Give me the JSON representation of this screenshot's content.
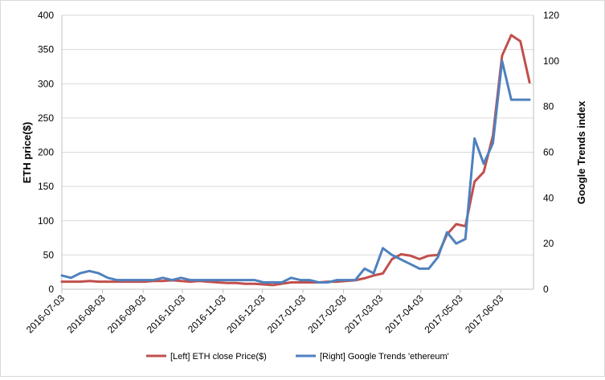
{
  "chart_data": {
    "type": "line",
    "title": "",
    "y_left": {
      "label": "ETH price($)",
      "range": [
        0,
        400
      ],
      "ticks": [
        0,
        50,
        100,
        150,
        200,
        250,
        300,
        350,
        400
      ]
    },
    "y_right": {
      "label": "Google Trends index",
      "range": [
        0,
        120
      ],
      "ticks": [
        0,
        20,
        40,
        60,
        80,
        100,
        120
      ]
    },
    "x_tick_labels": [
      "2016-07-03",
      "2016-08-03",
      "2016-09-03",
      "2016-10-03",
      "2016-11-03",
      "2016-12-03",
      "2017-01-03",
      "2017-02-03",
      "2017-03-03",
      "2017-04-03",
      "2017-05-03",
      "2017-06-03"
    ],
    "grid": "horizontal",
    "legend_position": "bottom",
    "series": [
      {
        "name": "[Left] ETH close Price($)",
        "axis": "left",
        "color": "#c0504d",
        "x": [
          "2016-07-03",
          "2016-07-10",
          "2016-07-17",
          "2016-07-24",
          "2016-07-31",
          "2016-08-07",
          "2016-08-14",
          "2016-08-21",
          "2016-08-28",
          "2016-09-04",
          "2016-09-11",
          "2016-09-18",
          "2016-09-25",
          "2016-10-02",
          "2016-10-09",
          "2016-10-16",
          "2016-10-23",
          "2016-10-30",
          "2016-11-06",
          "2016-11-13",
          "2016-11-20",
          "2016-11-27",
          "2016-12-04",
          "2016-12-11",
          "2016-12-18",
          "2016-12-25",
          "2017-01-01",
          "2017-01-08",
          "2017-01-15",
          "2017-01-22",
          "2017-01-29",
          "2017-02-05",
          "2017-02-12",
          "2017-02-19",
          "2017-02-26",
          "2017-03-05",
          "2017-03-12",
          "2017-03-19",
          "2017-03-26",
          "2017-04-02",
          "2017-04-09",
          "2017-04-16",
          "2017-04-23",
          "2017-04-30",
          "2017-05-07",
          "2017-05-14",
          "2017-05-21",
          "2017-05-28",
          "2017-06-04",
          "2017-06-11",
          "2017-06-18",
          "2017-06-25"
        ],
        "values": [
          11,
          11,
          11,
          12,
          11,
          11,
          11,
          11,
          11,
          11,
          12,
          12,
          13,
          12,
          11,
          12,
          11,
          10,
          9,
          9,
          8,
          8,
          7,
          6,
          8,
          10,
          10,
          10,
          10,
          11,
          11,
          12,
          13,
          16,
          20,
          23,
          44,
          51,
          49,
          44,
          49,
          50,
          80,
          95,
          92,
          157,
          171,
          224,
          341,
          371,
          362,
          302
        ]
      },
      {
        "name": "[Right] Google Trends 'ethereum'",
        "axis": "right",
        "color": "#4f81bd",
        "x": [
          "2016-07-03",
          "2016-07-10",
          "2016-07-17",
          "2016-07-24",
          "2016-07-31",
          "2016-08-07",
          "2016-08-14",
          "2016-08-21",
          "2016-08-28",
          "2016-09-04",
          "2016-09-11",
          "2016-09-18",
          "2016-09-25",
          "2016-10-02",
          "2016-10-09",
          "2016-10-16",
          "2016-10-23",
          "2016-10-30",
          "2016-11-06",
          "2016-11-13",
          "2016-11-20",
          "2016-11-27",
          "2016-12-04",
          "2016-12-11",
          "2016-12-18",
          "2016-12-25",
          "2017-01-01",
          "2017-01-08",
          "2017-01-15",
          "2017-01-22",
          "2017-01-29",
          "2017-02-05",
          "2017-02-12",
          "2017-02-19",
          "2017-02-26",
          "2017-03-05",
          "2017-03-12",
          "2017-03-19",
          "2017-03-26",
          "2017-04-02",
          "2017-04-09",
          "2017-04-16",
          "2017-04-23",
          "2017-04-30",
          "2017-05-07",
          "2017-05-14",
          "2017-05-21",
          "2017-05-28",
          "2017-06-04",
          "2017-06-11",
          "2017-06-18",
          "2017-06-25"
        ],
        "values": [
          6,
          5,
          7,
          8,
          7,
          5,
          4,
          4,
          4,
          4,
          4,
          5,
          4,
          5,
          4,
          4,
          4,
          4,
          4,
          4,
          4,
          4,
          3,
          3,
          3,
          5,
          4,
          4,
          3,
          3,
          4,
          4,
          4,
          9,
          7,
          18,
          15,
          13,
          11,
          9,
          9,
          14,
          25,
          20,
          22,
          66,
          55,
          64,
          100,
          83,
          83,
          83
        ]
      }
    ]
  }
}
